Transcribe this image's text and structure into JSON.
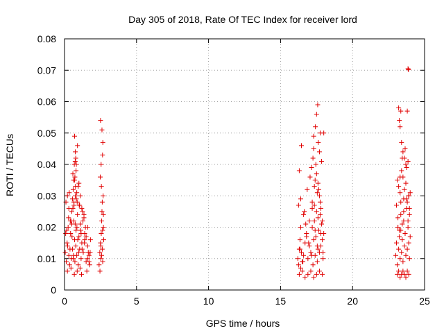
{
  "chart_data": {
    "type": "scatter",
    "title": "Day 305 of 2018, Rate Of TEC Index for receiver lord",
    "xlabel": "GPS time / hours",
    "ylabel": "ROTI / TECUs",
    "xlim": [
      0,
      25
    ],
    "ylim": [
      0,
      0.08
    ],
    "x_ticks": [
      0,
      5,
      10,
      15,
      20,
      25
    ],
    "y_ticks": [
      0,
      0.01,
      0.02,
      0.03,
      0.04,
      0.05,
      0.06,
      0.07,
      0.08
    ],
    "x_tick_labels": [
      "0",
      "5",
      "10",
      "15",
      "20",
      "25"
    ],
    "y_tick_labels": [
      "0",
      "0.01",
      "0.02",
      "0.03",
      "0.04",
      "0.05",
      "0.06",
      "0.07",
      "0.08"
    ],
    "grid": true,
    "marker": "+",
    "color": "#e00000",
    "series": [
      {
        "x": [
          0.05,
          0.12,
          0.18,
          0.25,
          0.3,
          0.35,
          0.42,
          0.5,
          0.55,
          0.6,
          0.65,
          0.7,
          0.72,
          0.75,
          0.78,
          0.8,
          0.85,
          0.9,
          0.95,
          1.0,
          1.05,
          1.1,
          1.15,
          1.2,
          1.3,
          1.4,
          1.5,
          1.6,
          1.7,
          1.8,
          0.1,
          0.2,
          0.33,
          0.45,
          0.58,
          0.68,
          0.76,
          0.88,
          1.02,
          1.18,
          1.35,
          1.55,
          1.75,
          0.15,
          0.4,
          0.62,
          0.82,
          1.08,
          1.45,
          1.65,
          0.22,
          0.52,
          0.74,
          0.98,
          1.25,
          1.6,
          0.08,
          0.38,
          0.66,
          0.92,
          1.12,
          1.38,
          1.7,
          0.28,
          0.48,
          0.7,
          0.86,
          1.22,
          1.5,
          1.78,
          0.7,
          0.75,
          0.68,
          0.8,
          0.72,
          0.6,
          0.9,
          1.1,
          1.0,
          0.55,
          0.65,
          1.2,
          1.35,
          0.45,
          0.85,
          0.95,
          1.05,
          0.3,
          0.5,
          0.2,
          1.15,
          1.4,
          1.6,
          0.78,
          0.62,
          0.88,
          1.28,
          0.58,
          0.74,
          0.82
        ],
        "y": [
          0.012,
          0.009,
          0.015,
          0.02,
          0.011,
          0.008,
          0.018,
          0.025,
          0.013,
          0.01,
          0.022,
          0.016,
          0.009,
          0.03,
          0.014,
          0.019,
          0.011,
          0.024,
          0.008,
          0.017,
          0.013,
          0.021,
          0.01,
          0.015,
          0.012,
          0.018,
          0.009,
          0.014,
          0.011,
          0.016,
          0.028,
          0.006,
          0.031,
          0.007,
          0.026,
          0.005,
          0.033,
          0.006,
          0.027,
          0.005,
          0.023,
          0.006,
          0.008,
          0.019,
          0.022,
          0.011,
          0.029,
          0.007,
          0.02,
          0.012,
          0.014,
          0.017,
          0.021,
          0.012,
          0.025,
          0.01,
          0.018,
          0.013,
          0.027,
          0.016,
          0.019,
          0.015,
          0.009,
          0.023,
          0.01,
          0.035,
          0.02,
          0.013,
          0.017,
          0.012,
          0.049,
          0.044,
          0.04,
          0.038,
          0.036,
          0.032,
          0.046,
          0.03,
          0.034,
          0.029,
          0.028,
          0.026,
          0.024,
          0.022,
          0.031,
          0.033,
          0.027,
          0.026,
          0.021,
          0.03,
          0.018,
          0.016,
          0.02,
          0.042,
          0.035,
          0.028,
          0.022,
          0.037,
          0.041,
          0.04
        ]
      },
      {
        "x": [
          2.4,
          2.45,
          2.5,
          2.52,
          2.55,
          2.58,
          2.6,
          2.62,
          2.65,
          2.68,
          2.7,
          2.72,
          2.48,
          2.56,
          2.64,
          2.5,
          2.6,
          2.66,
          2.54,
          2.62,
          2.46,
          2.58,
          2.7,
          2.52,
          2.64
        ],
        "y": [
          0.008,
          0.012,
          0.015,
          0.01,
          0.018,
          0.022,
          0.025,
          0.013,
          0.009,
          0.03,
          0.02,
          0.016,
          0.036,
          0.033,
          0.043,
          0.054,
          0.051,
          0.047,
          0.04,
          0.028,
          0.006,
          0.011,
          0.024,
          0.014,
          0.019
        ]
      },
      {
        "x": [
          16.2,
          16.25,
          16.3,
          16.35,
          16.4,
          16.45,
          16.5,
          16.6,
          16.7,
          16.8,
          16.9,
          17.0,
          17.1,
          17.2,
          17.25,
          17.3,
          17.35,
          17.4,
          17.45,
          17.5,
          17.55,
          17.6,
          17.65,
          17.7,
          17.75,
          17.8,
          17.85,
          17.9,
          17.95,
          18.0,
          16.3,
          16.5,
          16.7,
          16.9,
          17.1,
          17.3,
          17.5,
          17.7,
          17.9,
          16.4,
          16.6,
          16.8,
          17.0,
          17.2,
          17.4,
          17.6,
          17.8,
          16.35,
          16.55,
          16.75,
          16.95,
          17.15,
          17.35,
          17.55,
          17.75,
          17.95,
          16.3,
          16.45,
          17.25,
          17.3,
          17.45,
          17.5,
          17.6,
          17.7,
          17.65,
          17.4,
          17.2,
          17.8,
          17.55,
          17.35,
          17.9,
          16.25,
          16.4,
          17.3,
          17.42,
          17.5,
          17.58,
          17.62,
          17.7,
          17.75,
          17.85,
          18.0,
          17.15,
          17.05,
          16.85,
          16.65
        ],
        "y": [
          0.01,
          0.008,
          0.013,
          0.016,
          0.007,
          0.012,
          0.009,
          0.011,
          0.015,
          0.018,
          0.01,
          0.014,
          0.012,
          0.02,
          0.008,
          0.016,
          0.022,
          0.011,
          0.017,
          0.025,
          0.009,
          0.013,
          0.019,
          0.012,
          0.028,
          0.014,
          0.021,
          0.016,
          0.01,
          0.018,
          0.005,
          0.006,
          0.004,
          0.005,
          0.006,
          0.004,
          0.005,
          0.006,
          0.005,
          0.02,
          0.024,
          0.017,
          0.022,
          0.026,
          0.019,
          0.023,
          0.018,
          0.013,
          0.009,
          0.021,
          0.015,
          0.011,
          0.027,
          0.014,
          0.024,
          0.012,
          0.038,
          0.046,
          0.042,
          0.045,
          0.04,
          0.037,
          0.034,
          0.03,
          0.032,
          0.035,
          0.028,
          0.026,
          0.031,
          0.033,
          0.022,
          0.027,
          0.029,
          0.049,
          0.052,
          0.056,
          0.059,
          0.047,
          0.044,
          0.05,
          0.041,
          0.05,
          0.039,
          0.036,
          0.032,
          0.025
        ]
      },
      {
        "x": [
          23.0,
          23.05,
          23.1,
          23.15,
          23.2,
          23.25,
          23.3,
          23.35,
          23.4,
          23.45,
          23.5,
          23.55,
          23.6,
          23.65,
          23.7,
          23.75,
          23.8,
          23.85,
          23.9,
          23.95,
          24.0,
          23.1,
          23.2,
          23.3,
          23.4,
          23.5,
          23.6,
          23.7,
          23.8,
          23.9,
          23.05,
          23.15,
          23.25,
          23.35,
          23.45,
          23.55,
          23.65,
          23.75,
          23.85,
          23.95,
          23.2,
          23.3,
          23.5,
          23.7,
          23.9,
          23.1,
          23.4,
          23.6,
          23.8,
          24.0,
          23.2,
          23.25,
          23.3,
          23.35,
          23.4,
          23.5,
          23.6,
          23.65,
          23.7,
          23.75,
          23.3,
          23.45,
          23.55,
          23.8,
          23.85,
          23.9,
          23.95,
          23.15,
          23.35
        ],
        "y": [
          0.011,
          0.015,
          0.008,
          0.02,
          0.013,
          0.017,
          0.01,
          0.024,
          0.012,
          0.016,
          0.009,
          0.022,
          0.014,
          0.018,
          0.011,
          0.026,
          0.013,
          0.02,
          0.015,
          0.01,
          0.017,
          0.005,
          0.006,
          0.004,
          0.005,
          0.006,
          0.005,
          0.004,
          0.006,
          0.005,
          0.027,
          0.023,
          0.019,
          0.028,
          0.021,
          0.025,
          0.018,
          0.029,
          0.022,
          0.026,
          0.033,
          0.031,
          0.036,
          0.034,
          0.03,
          0.035,
          0.038,
          0.032,
          0.028,
          0.031,
          0.058,
          0.054,
          0.052,
          0.057,
          0.047,
          0.044,
          0.042,
          0.045,
          0.04,
          0.039,
          0.036,
          0.042,
          0.029,
          0.057,
          0.041,
          0.03,
          0.024,
          0.02,
          0.019
        ]
      },
      {
        "x": [
          23.85,
          23.88
        ],
        "y": [
          0.0705,
          0.0702
        ]
      }
    ]
  }
}
